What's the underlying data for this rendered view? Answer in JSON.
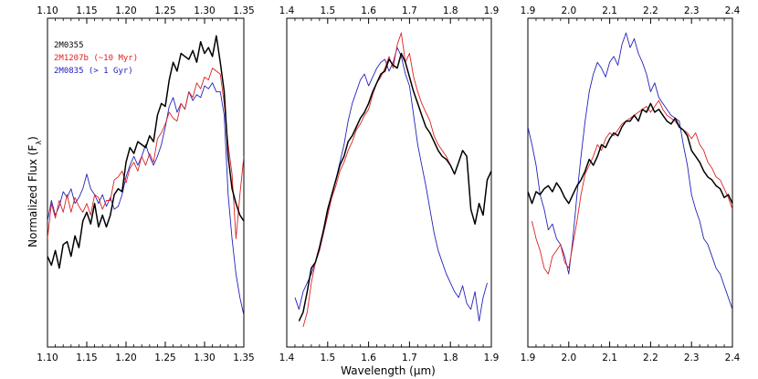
{
  "chart_data": [
    {
      "type": "line",
      "xlim": [
        1.1,
        1.35
      ],
      "ylim": [
        0,
        1
      ],
      "xticks": [
        "1.10",
        "1.15",
        "1.20",
        "1.25",
        "1.30",
        "1.35"
      ],
      "legend": "top-left",
      "series": [
        {
          "name": "2M0355",
          "color": "#000000",
          "x": [
            1.1,
            1.105,
            1.11,
            1.115,
            1.12,
            1.125,
            1.13,
            1.135,
            1.14,
            1.145,
            1.15,
            1.155,
            1.16,
            1.165,
            1.17,
            1.175,
            1.18,
            1.185,
            1.19,
            1.195,
            1.2,
            1.205,
            1.21,
            1.215,
            1.22,
            1.225,
            1.23,
            1.235,
            1.24,
            1.245,
            1.25,
            1.255,
            1.26,
            1.265,
            1.27,
            1.275,
            1.28,
            1.285,
            1.29,
            1.295,
            1.3,
            1.305,
            1.31,
            1.315,
            1.32,
            1.325,
            1.33,
            1.335,
            1.34,
            1.345,
            1.35
          ],
          "y": [
            0.24,
            0.21,
            0.26,
            0.2,
            0.28,
            0.29,
            0.24,
            0.31,
            0.27,
            0.36,
            0.39,
            0.35,
            0.42,
            0.34,
            0.38,
            0.34,
            0.38,
            0.45,
            0.47,
            0.46,
            0.56,
            0.61,
            0.59,
            0.63,
            0.62,
            0.61,
            0.65,
            0.63,
            0.72,
            0.76,
            0.75,
            0.84,
            0.9,
            0.87,
            0.93,
            0.92,
            0.91,
            0.94,
            0.9,
            0.97,
            0.93,
            0.95,
            0.92,
            0.99,
            0.9,
            0.8,
            0.58,
            0.47,
            0.42,
            0.38,
            0.36
          ]
        },
        {
          "name": "2M1207b (~10 Myr)",
          "color": "#dd2222",
          "x": [
            1.1,
            1.105,
            1.11,
            1.115,
            1.12,
            1.125,
            1.13,
            1.135,
            1.14,
            1.145,
            1.15,
            1.155,
            1.16,
            1.165,
            1.17,
            1.175,
            1.18,
            1.185,
            1.19,
            1.195,
            1.2,
            1.205,
            1.21,
            1.215,
            1.22,
            1.225,
            1.23,
            1.235,
            1.24,
            1.245,
            1.25,
            1.255,
            1.26,
            1.265,
            1.27,
            1.275,
            1.28,
            1.285,
            1.29,
            1.295,
            1.3,
            1.305,
            1.31,
            1.315,
            1.32,
            1.325,
            1.33,
            1.335,
            1.34,
            1.345,
            1.35
          ],
          "y": [
            0.3,
            0.42,
            0.37,
            0.43,
            0.39,
            0.45,
            0.39,
            0.44,
            0.41,
            0.39,
            0.42,
            0.38,
            0.45,
            0.44,
            0.4,
            0.43,
            0.43,
            0.5,
            0.51,
            0.53,
            0.49,
            0.54,
            0.56,
            0.53,
            0.58,
            0.55,
            0.59,
            0.56,
            0.64,
            0.66,
            0.69,
            0.73,
            0.71,
            0.7,
            0.76,
            0.74,
            0.8,
            0.78,
            0.83,
            0.81,
            0.85,
            0.84,
            0.88,
            0.87,
            0.86,
            0.76,
            0.62,
            0.52,
            0.3,
            0.45,
            0.58
          ]
        },
        {
          "name": "2M0835 (> 1 Gyr)",
          "color": "#2222bb",
          "x": [
            1.1,
            1.105,
            1.11,
            1.115,
            1.12,
            1.125,
            1.13,
            1.135,
            1.14,
            1.145,
            1.15,
            1.155,
            1.16,
            1.165,
            1.17,
            1.175,
            1.18,
            1.185,
            1.19,
            1.195,
            1.2,
            1.205,
            1.21,
            1.215,
            1.22,
            1.225,
            1.23,
            1.235,
            1.24,
            1.245,
            1.25,
            1.255,
            1.26,
            1.265,
            1.27,
            1.275,
            1.28,
            1.285,
            1.29,
            1.295,
            1.3,
            1.305,
            1.31,
            1.315,
            1.32,
            1.325,
            1.33,
            1.335,
            1.34,
            1.345,
            1.35
          ],
          "y": [
            0.36,
            0.43,
            0.38,
            0.41,
            0.46,
            0.44,
            0.47,
            0.42,
            0.44,
            0.47,
            0.52,
            0.47,
            0.45,
            0.42,
            0.45,
            0.41,
            0.44,
            0.4,
            0.41,
            0.45,
            0.51,
            0.55,
            0.58,
            0.55,
            0.58,
            0.62,
            0.58,
            0.55,
            0.58,
            0.62,
            0.68,
            0.75,
            0.78,
            0.73,
            0.76,
            0.74,
            0.8,
            0.77,
            0.79,
            0.78,
            0.82,
            0.81,
            0.83,
            0.8,
            0.8,
            0.72,
            0.45,
            0.3,
            0.18,
            0.1,
            0.04
          ]
        }
      ]
    },
    {
      "type": "line",
      "xlim": [
        1.4,
        1.9
      ],
      "ylim": [
        0,
        1
      ],
      "xticks": [
        "1.4",
        "1.5",
        "1.6",
        "1.7",
        "1.8",
        "1.9"
      ],
      "series": [
        {
          "name": "2M0355",
          "color": "#000000",
          "x": [
            1.43,
            1.44,
            1.45,
            1.46,
            1.47,
            1.48,
            1.49,
            1.5,
            1.51,
            1.52,
            1.53,
            1.54,
            1.55,
            1.56,
            1.57,
            1.58,
            1.59,
            1.6,
            1.61,
            1.62,
            1.63,
            1.64,
            1.65,
            1.66,
            1.67,
            1.68,
            1.69,
            1.7,
            1.71,
            1.72,
            1.73,
            1.74,
            1.75,
            1.76,
            1.77,
            1.78,
            1.79,
            1.8,
            1.81,
            1.82,
            1.83,
            1.84,
            1.85,
            1.86,
            1.87,
            1.88,
            1.89,
            1.9
          ],
          "y": [
            0.02,
            0.05,
            0.12,
            0.2,
            0.22,
            0.27,
            0.33,
            0.4,
            0.45,
            0.5,
            0.55,
            0.58,
            0.63,
            0.65,
            0.68,
            0.71,
            0.73,
            0.76,
            0.8,
            0.83,
            0.86,
            0.87,
            0.91,
            0.89,
            0.88,
            0.93,
            0.9,
            0.85,
            0.8,
            0.76,
            0.72,
            0.68,
            0.66,
            0.63,
            0.6,
            0.58,
            0.57,
            0.55,
            0.52,
            0.56,
            0.6,
            0.58,
            0.4,
            0.35,
            0.42,
            0.38,
            0.5,
            0.53
          ]
        },
        {
          "name": "2M1207b",
          "color": "#dd2222",
          "x": [
            1.44,
            1.45,
            1.46,
            1.47,
            1.48,
            1.49,
            1.5,
            1.51,
            1.52,
            1.53,
            1.54,
            1.55,
            1.56,
            1.57,
            1.58,
            1.59,
            1.6,
            1.61,
            1.62,
            1.63,
            1.64,
            1.65,
            1.66,
            1.67,
            1.68,
            1.69,
            1.7,
            1.71,
            1.72,
            1.73,
            1.74,
            1.75,
            1.76,
            1.77,
            1.78,
            1.79,
            1.8
          ],
          "y": [
            0.0,
            0.05,
            0.15,
            0.22,
            0.26,
            0.32,
            0.38,
            0.44,
            0.48,
            0.53,
            0.56,
            0.6,
            0.63,
            0.67,
            0.69,
            0.72,
            0.74,
            0.79,
            0.83,
            0.85,
            0.88,
            0.92,
            0.88,
            0.96,
            1.0,
            0.9,
            0.93,
            0.85,
            0.8,
            0.76,
            0.73,
            0.7,
            0.65,
            0.62,
            0.6,
            0.58,
            0.55
          ]
        },
        {
          "name": "2M0835",
          "color": "#2222bb",
          "x": [
            1.42,
            1.43,
            1.44,
            1.45,
            1.46,
            1.47,
            1.48,
            1.49,
            1.5,
            1.51,
            1.52,
            1.53,
            1.54,
            1.55,
            1.56,
            1.57,
            1.58,
            1.59,
            1.6,
            1.61,
            1.62,
            1.63,
            1.64,
            1.65,
            1.66,
            1.67,
            1.68,
            1.69,
            1.7,
            1.71,
            1.72,
            1.73,
            1.74,
            1.75,
            1.76,
            1.77,
            1.78,
            1.79,
            1.8,
            1.81,
            1.82,
            1.83,
            1.84,
            1.85,
            1.86,
            1.87,
            1.88,
            1.89
          ],
          "y": [
            0.1,
            0.06,
            0.12,
            0.15,
            0.18,
            0.22,
            0.26,
            0.32,
            0.38,
            0.45,
            0.5,
            0.56,
            0.62,
            0.7,
            0.76,
            0.8,
            0.84,
            0.86,
            0.82,
            0.85,
            0.88,
            0.9,
            0.91,
            0.87,
            0.9,
            0.95,
            0.92,
            0.86,
            0.82,
            0.72,
            0.62,
            0.55,
            0.48,
            0.4,
            0.32,
            0.26,
            0.22,
            0.18,
            0.15,
            0.12,
            0.1,
            0.14,
            0.08,
            0.06,
            0.12,
            0.02,
            0.1,
            0.15
          ]
        }
      ]
    },
    {
      "type": "line",
      "xlim": [
        1.9,
        2.4
      ],
      "ylim": [
        0,
        1
      ],
      "xticks": [
        "1.9",
        "2.0",
        "2.1",
        "2.2",
        "2.3",
        "2.4"
      ],
      "series": [
        {
          "name": "2M0355",
          "color": "#000000",
          "x": [
            1.9,
            1.91,
            1.92,
            1.93,
            1.94,
            1.95,
            1.96,
            1.97,
            1.98,
            1.99,
            2.0,
            2.01,
            2.02,
            2.03,
            2.04,
            2.05,
            2.06,
            2.07,
            2.08,
            2.09,
            2.1,
            2.11,
            2.12,
            2.13,
            2.14,
            2.15,
            2.16,
            2.17,
            2.18,
            2.19,
            2.2,
            2.21,
            2.22,
            2.23,
            2.24,
            2.25,
            2.26,
            2.27,
            2.28,
            2.29,
            2.3,
            2.31,
            2.32,
            2.33,
            2.34,
            2.35,
            2.36,
            2.37,
            2.38,
            2.39,
            2.4
          ],
          "y": [
            0.46,
            0.42,
            0.46,
            0.45,
            0.47,
            0.48,
            0.46,
            0.49,
            0.47,
            0.44,
            0.42,
            0.45,
            0.48,
            0.5,
            0.53,
            0.57,
            0.55,
            0.58,
            0.62,
            0.61,
            0.64,
            0.66,
            0.65,
            0.68,
            0.7,
            0.7,
            0.72,
            0.7,
            0.74,
            0.73,
            0.76,
            0.73,
            0.74,
            0.72,
            0.7,
            0.69,
            0.71,
            0.68,
            0.67,
            0.65,
            0.6,
            0.58,
            0.56,
            0.53,
            0.51,
            0.5,
            0.48,
            0.47,
            0.44,
            0.45,
            0.42
          ]
        },
        {
          "name": "2M1207b",
          "color": "#dd2222",
          "x": [
            1.91,
            1.92,
            1.93,
            1.94,
            1.95,
            1.96,
            1.97,
            1.98,
            1.99,
            2.0,
            2.01,
            2.02,
            2.03,
            2.04,
            2.05,
            2.06,
            2.07,
            2.08,
            2.09,
            2.1,
            2.11,
            2.12,
            2.13,
            2.14,
            2.15,
            2.16,
            2.17,
            2.18,
            2.19,
            2.2,
            2.21,
            2.22,
            2.23,
            2.24,
            2.25,
            2.26,
            2.27,
            2.28,
            2.29,
            2.3,
            2.31,
            2.32,
            2.33,
            2.34,
            2.35,
            2.36,
            2.37,
            2.38,
            2.39,
            2.4
          ],
          "y": [
            0.36,
            0.3,
            0.26,
            0.2,
            0.18,
            0.24,
            0.26,
            0.28,
            0.22,
            0.2,
            0.28,
            0.36,
            0.45,
            0.52,
            0.55,
            0.58,
            0.62,
            0.6,
            0.64,
            0.66,
            0.65,
            0.67,
            0.69,
            0.7,
            0.71,
            0.72,
            0.73,
            0.74,
            0.75,
            0.73,
            0.75,
            0.77,
            0.74,
            0.72,
            0.71,
            0.7,
            0.68,
            0.67,
            0.66,
            0.64,
            0.66,
            0.62,
            0.6,
            0.56,
            0.54,
            0.51,
            0.5,
            0.47,
            0.44,
            0.4
          ]
        },
        {
          "name": "2M0835",
          "color": "#2222bb",
          "x": [
            1.9,
            1.91,
            1.92,
            1.93,
            1.94,
            1.95,
            1.96,
            1.97,
            1.98,
            1.99,
            2.0,
            2.01,
            2.02,
            2.03,
            2.04,
            2.05,
            2.06,
            2.07,
            2.08,
            2.09,
            2.1,
            2.11,
            2.12,
            2.13,
            2.14,
            2.15,
            2.16,
            2.17,
            2.18,
            2.19,
            2.2,
            2.21,
            2.22,
            2.23,
            2.24,
            2.25,
            2.26,
            2.27,
            2.28,
            2.29,
            2.3,
            2.31,
            2.32,
            2.33,
            2.34,
            2.35,
            2.36,
            2.37,
            2.38,
            2.39,
            2.4
          ],
          "y": [
            0.68,
            0.62,
            0.55,
            0.45,
            0.4,
            0.33,
            0.35,
            0.3,
            0.28,
            0.24,
            0.18,
            0.3,
            0.45,
            0.58,
            0.7,
            0.8,
            0.86,
            0.9,
            0.88,
            0.85,
            0.9,
            0.92,
            0.89,
            0.96,
            1.0,
            0.95,
            0.98,
            0.93,
            0.9,
            0.86,
            0.8,
            0.83,
            0.78,
            0.76,
            0.74,
            0.72,
            0.71,
            0.7,
            0.62,
            0.55,
            0.45,
            0.4,
            0.36,
            0.3,
            0.28,
            0.24,
            0.2,
            0.18,
            0.14,
            0.1,
            0.06
          ]
        }
      ]
    }
  ],
  "ylabel_prefix": "Normalized Flux (F",
  "ylabel_sub": "λ",
  "ylabel_suffix": ")",
  "xlabel_prefix": "Wavelength (",
  "xlabel_mu": "μ",
  "xlabel_suffix": "m)"
}
